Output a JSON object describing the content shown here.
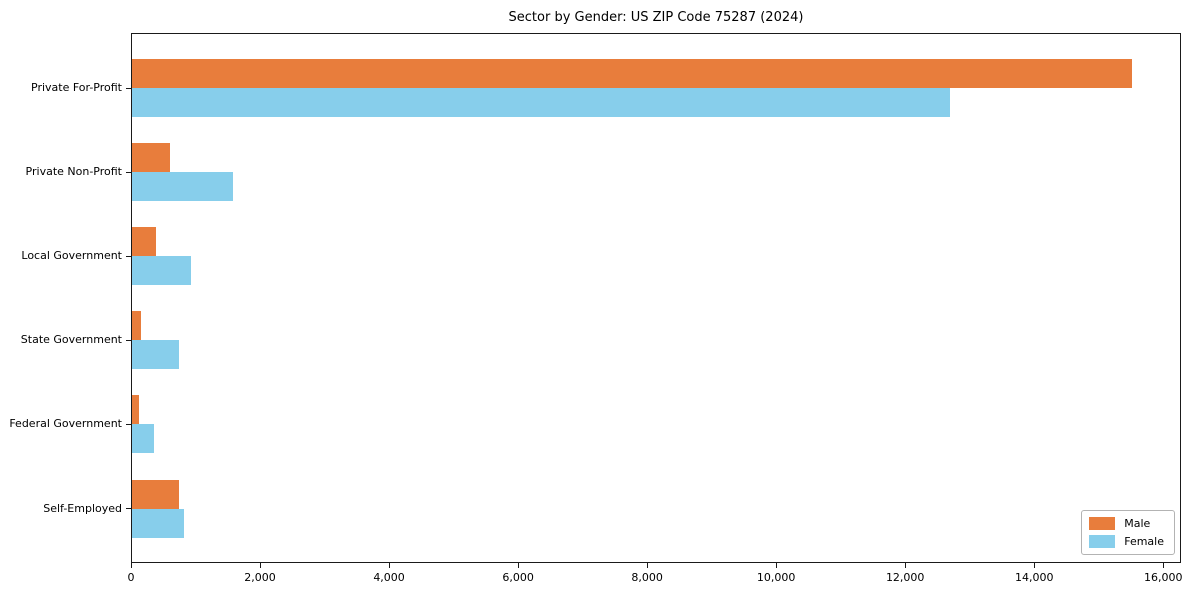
{
  "chart_data": {
    "type": "bar",
    "orientation": "horizontal",
    "title": "Sector by Gender: US ZIP Code 75287 (2024)",
    "categories": [
      "Private For-Profit",
      "Private Non-Profit",
      "Local Government",
      "State Government",
      "Federal Government",
      "Self-Employed"
    ],
    "series": [
      {
        "name": "Male",
        "color": "#e87d3c",
        "values": [
          15500,
          590,
          370,
          145,
          110,
          730
        ]
      },
      {
        "name": "Female",
        "color": "#87ceeb",
        "values": [
          12680,
          1560,
          920,
          730,
          345,
          810
        ]
      }
    ],
    "xlim": [
      0,
      16275
    ],
    "xticks": [
      0,
      2000,
      4000,
      6000,
      8000,
      10000,
      12000,
      14000,
      16000
    ],
    "xtick_labels": [
      "0",
      "2,000",
      "4,000",
      "6,000",
      "8,000",
      "10,000",
      "12,000",
      "14,000",
      "16,000"
    ],
    "ylabel": "",
    "xlabel": "",
    "grid": false,
    "legend": {
      "position": "lower right",
      "entries": [
        "Male",
        "Female"
      ]
    },
    "colors": {
      "background": "#ffffff",
      "axis": "#1a1a1a"
    }
  }
}
